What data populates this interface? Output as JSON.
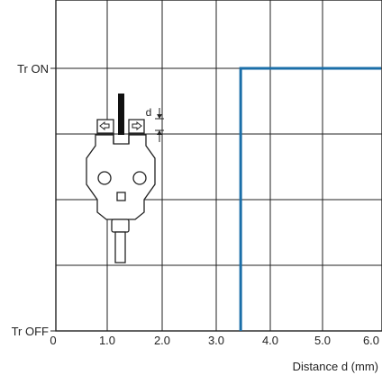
{
  "chart_data": {
    "type": "line",
    "xlabel": "Distance d (mm)",
    "ylabel": "",
    "x_ticks": [
      0,
      1.0,
      2.0,
      3.0,
      4.0,
      5.0,
      6.0
    ],
    "x_tick_labels": [
      "0",
      "1.0",
      "2.0",
      "3.0",
      "4.0",
      "5.0",
      "6.0"
    ],
    "y_levels": [
      "Tr OFF",
      "Tr ON"
    ],
    "xlim": [
      0,
      6.0
    ],
    "grid": true,
    "series": [
      {
        "x": [
          3.4,
          3.4,
          6.0
        ],
        "y": [
          "Tr OFF",
          "Tr ON",
          "Tr ON"
        ],
        "color": "#1a6ea8"
      }
    ],
    "inset": {
      "dimension_label": "d"
    }
  }
}
